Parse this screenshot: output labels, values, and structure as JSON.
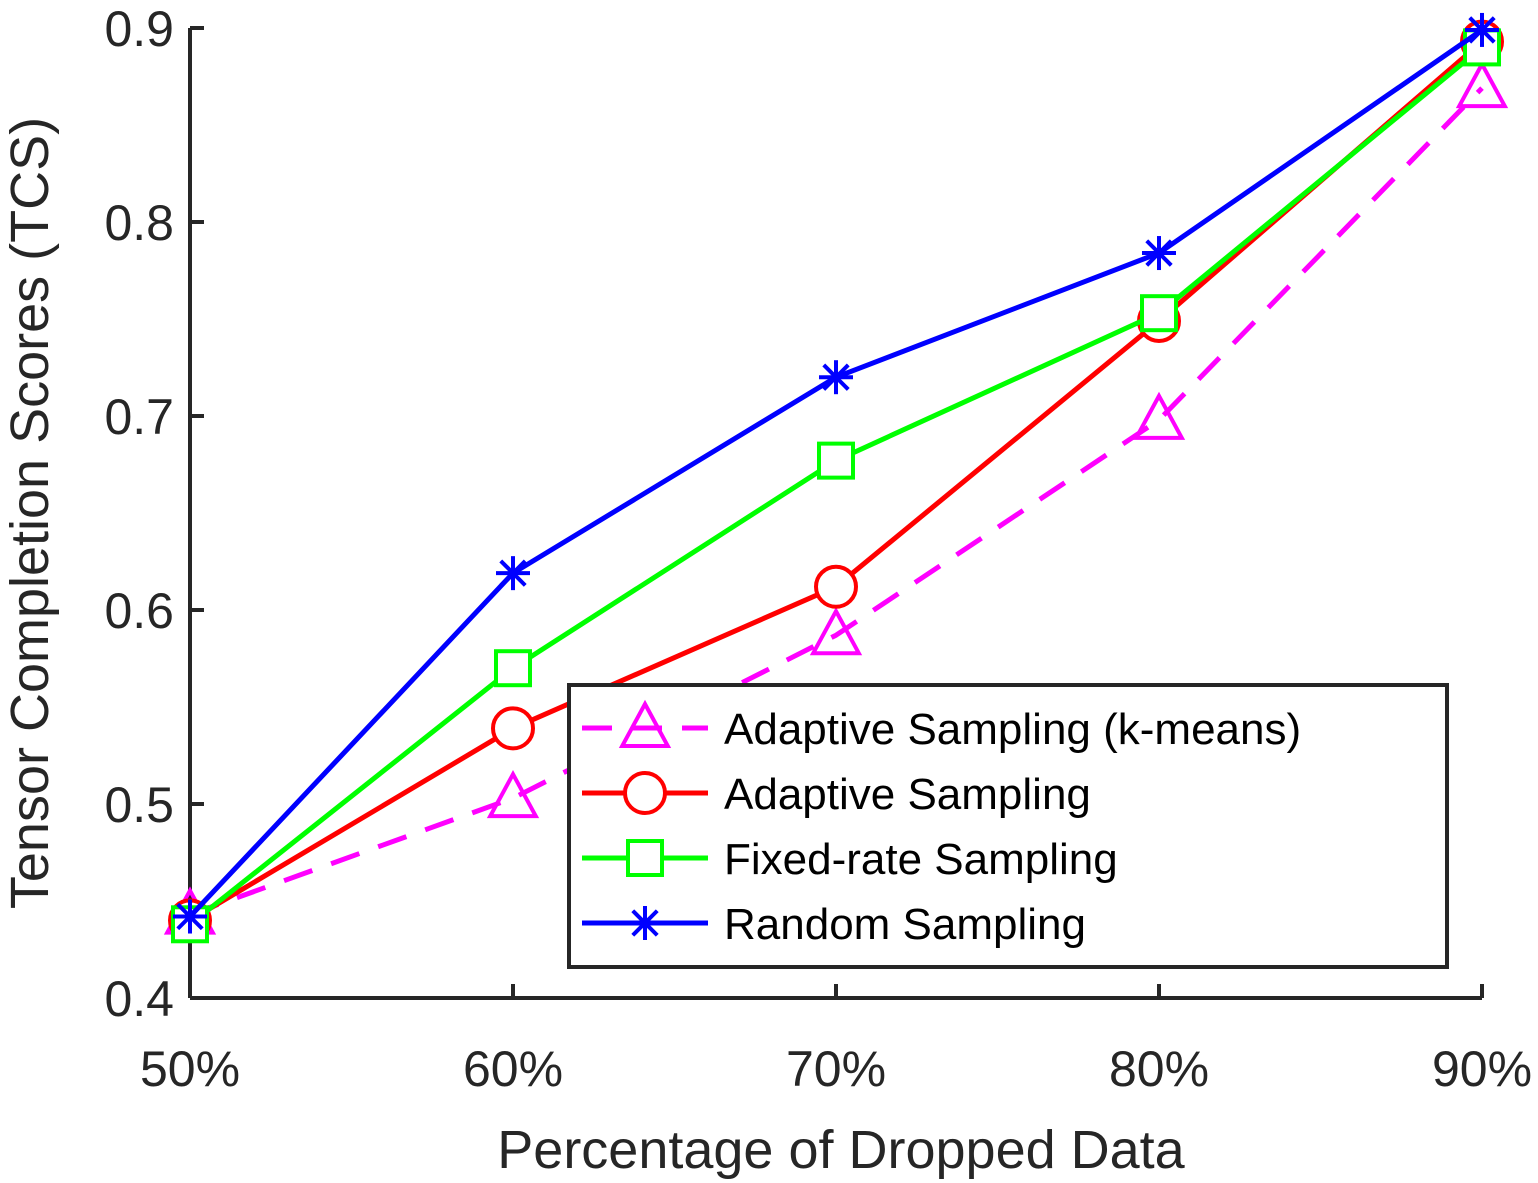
{
  "chart_data": {
    "type": "line",
    "title": "",
    "xlabel": "Percentage of Dropped Data",
    "ylabel": "Tensor Completion Scores (TCS)",
    "categories": [
      "50%",
      "60%",
      "70%",
      "80%",
      "90%"
    ],
    "ylim": [
      0.4,
      0.9
    ],
    "yticks": [
      "0.4",
      "0.5",
      "0.6",
      "0.7",
      "0.8",
      "0.9"
    ],
    "grid": false,
    "legend_position": "bottom-right",
    "series": [
      {
        "name": "Adaptive Sampling (k-means)",
        "color": "#ff00ff",
        "marker": "triangle",
        "dash": true,
        "values": [
          0.443,
          0.503,
          0.587,
          0.698,
          0.869
        ]
      },
      {
        "name": "Adaptive Sampling",
        "color": "#ff0000",
        "marker": "circle",
        "dash": false,
        "values": [
          0.44,
          0.539,
          0.612,
          0.749,
          0.893
        ]
      },
      {
        "name": "Fixed-rate Sampling",
        "color": "#00ff00",
        "marker": "square",
        "dash": false,
        "values": [
          0.438,
          0.57,
          0.677,
          0.753,
          0.89
        ]
      },
      {
        "name": "Random Sampling",
        "color": "#0000ff",
        "marker": "asterisk",
        "dash": false,
        "values": [
          0.442,
          0.619,
          0.72,
          0.784,
          0.899
        ]
      }
    ]
  }
}
